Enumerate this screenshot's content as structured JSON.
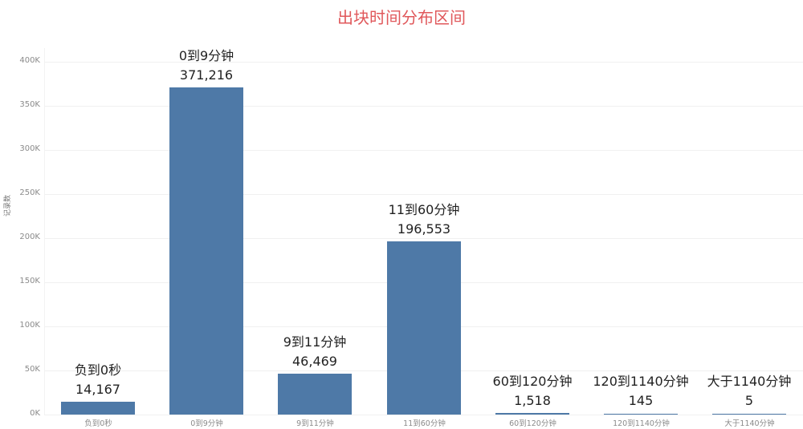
{
  "title": "出块时间分布区间",
  "y_axis": {
    "label": "记录数",
    "ticks": [
      "0K",
      "50K",
      "100K",
      "150K",
      "200K",
      "250K",
      "300K",
      "350K",
      "400K"
    ]
  },
  "bars": [
    {
      "category": "负到0秒",
      "label": "负到0秒",
      "value_text": "14,167"
    },
    {
      "category": "0到9分钟",
      "label": "0到9分钟",
      "value_text": "371,216"
    },
    {
      "category": "9到11分钟",
      "label": "9到11分钟",
      "value_text": "46,469"
    },
    {
      "category": "11到60分钟",
      "label": "11到60分钟",
      "value_text": "196,553"
    },
    {
      "category": "60到120分钟",
      "label": "60到120分钟",
      "value_text": "1,518"
    },
    {
      "category": "120到1140分钟",
      "label": "120到1140分钟",
      "value_text": "145"
    },
    {
      "category": "大于1140分钟",
      "label": "大于1140分钟",
      "value_text": "5"
    }
  ],
  "colors": {
    "bar": "#4e79a7",
    "title": "#e0585b"
  },
  "chart_data": {
    "type": "bar",
    "title": "出块时间分布区间",
    "xlabel": "",
    "ylabel": "记录数",
    "categories": [
      "负到0秒",
      "0到9分钟",
      "9到11分钟",
      "11到60分钟",
      "60到120分钟",
      "120到1140分钟",
      "大于1140分钟"
    ],
    "values": [
      14167,
      371216,
      46469,
      196553,
      1518,
      145,
      5
    ],
    "ylim": [
      0,
      400000
    ],
    "yticks": [
      0,
      50000,
      100000,
      150000,
      200000,
      250000,
      300000,
      350000,
      400000
    ],
    "ytick_labels": [
      "0K",
      "50K",
      "100K",
      "150K",
      "200K",
      "250K",
      "300K",
      "350K",
      "400K"
    ],
    "grid": true,
    "legend": null,
    "data_labels": true
  }
}
